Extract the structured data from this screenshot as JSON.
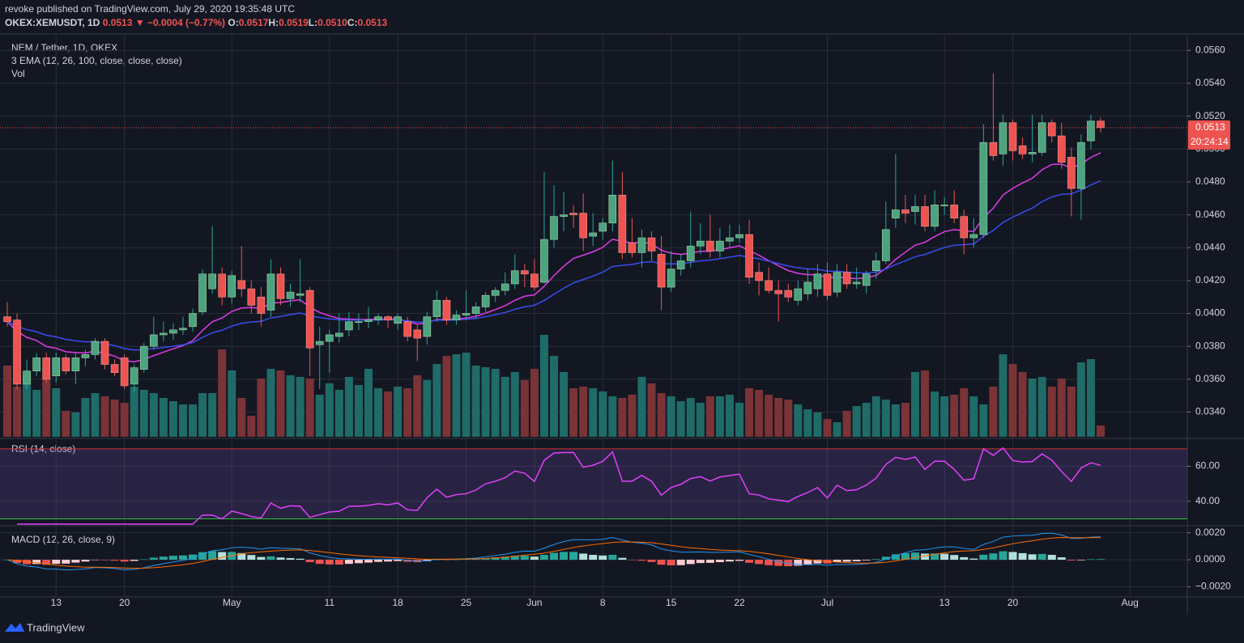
{
  "header": {
    "author_line": "revoke published on TradingView.com, July 29, 2020 19:35:48 UTC",
    "symbol": "OKEX:XEMUSDT, 1D",
    "last": "0.0513",
    "change": "▼ −0.0004 (−0.77%)",
    "ohlc": [
      {
        "label": "O:",
        "value": "0.0517"
      },
      {
        "label": "H:",
        "value": "0.0519"
      },
      {
        "label": "L:",
        "value": "0.0510"
      },
      {
        "label": "C:",
        "value": "0.0513"
      }
    ]
  },
  "legend": {
    "title": "NEM / Tether, 1D, OKEX",
    "ema": "3 EMA (12, 26, 100, close, close, close)",
    "vol": "Vol",
    "rsi": "RSI (14, close)",
    "macd": "MACD (12, 26, close, 9)"
  },
  "price_label": {
    "value": 0.0513,
    "label": "0.0513",
    "countdown": "20:24:14"
  },
  "footer": "TradingView",
  "chart_data": {
    "type": "candlestick",
    "up_color": "#26a69a",
    "down_color": "#ef5350",
    "vol_up_color": "#1f6b67",
    "vol_down_color": "#7a3336",
    "ema_lines": [
      {
        "period": 12,
        "color": "#e03ce6"
      },
      {
        "period": 26,
        "color": "#3b4cf0"
      }
    ],
    "rsi_period": 14,
    "macd_params": [
      12,
      26,
      9
    ],
    "ylim": [
      0.0325,
      0.057
    ],
    "yticks": [
      {
        "value": 0.034,
        "label": "0.0340"
      },
      {
        "value": 0.036,
        "label": "0.0360"
      },
      {
        "value": 0.038,
        "label": "0.0380"
      },
      {
        "value": 0.04,
        "label": "0.0400"
      },
      {
        "value": 0.042,
        "label": "0.0420"
      },
      {
        "value": 0.044,
        "label": "0.0440"
      },
      {
        "value": 0.046,
        "label": "0.0460"
      },
      {
        "value": 0.048,
        "label": "0.0480"
      },
      {
        "value": 0.05,
        "label": "0.0500"
      },
      {
        "value": 0.052,
        "label": "0.0520"
      },
      {
        "value": 0.054,
        "label": "0.0540"
      },
      {
        "value": 0.056,
        "label": "0.0560"
      }
    ],
    "rsi_ylim": [
      27,
      75
    ],
    "rsi_bands": [
      70,
      30
    ],
    "rsi_yticks": [
      {
        "value": 40,
        "label": "40.00"
      },
      {
        "value": 60,
        "label": "60.00"
      }
    ],
    "macd_ylim": [
      -0.00275,
      0.0024
    ],
    "macd_yticks": [
      {
        "value": -0.002,
        "label": "−0.0020"
      },
      {
        "value": 0,
        "label": "0.0000"
      },
      {
        "value": 0.002,
        "label": "0.0020"
      }
    ],
    "xticks": [
      {
        "value": 5,
        "label": "13"
      },
      {
        "value": 12,
        "label": "20"
      },
      {
        "value": 23,
        "label": "May"
      },
      {
        "value": 33,
        "label": "11"
      },
      {
        "value": 40,
        "label": "18"
      },
      {
        "value": 47,
        "label": "25"
      },
      {
        "value": 54,
        "label": "Jun"
      },
      {
        "value": 61,
        "label": "8"
      },
      {
        "value": 68,
        "label": "15"
      },
      {
        "value": 75,
        "label": "22"
      },
      {
        "value": 84,
        "label": "Jul"
      },
      {
        "value": 96,
        "label": "13"
      },
      {
        "value": 103,
        "label": "20"
      },
      {
        "value": 115,
        "label": "Aug"
      }
    ],
    "ohlc": [
      [
        0.0398,
        0.0407,
        0.0392,
        0.0395
      ],
      [
        0.0396,
        0.04,
        0.0354,
        0.0357
      ],
      [
        0.0357,
        0.0372,
        0.0354,
        0.0365
      ],
      [
        0.0365,
        0.0376,
        0.0362,
        0.0373
      ],
      [
        0.0373,
        0.0376,
        0.0358,
        0.036
      ],
      [
        0.0362,
        0.0376,
        0.0358,
        0.0373
      ],
      [
        0.0373,
        0.0375,
        0.0363,
        0.0365
      ],
      [
        0.0365,
        0.0376,
        0.0357,
        0.0373
      ],
      [
        0.0373,
        0.0378,
        0.0368,
        0.0375
      ],
      [
        0.0375,
        0.0385,
        0.0372,
        0.0383
      ],
      [
        0.0383,
        0.0385,
        0.0366,
        0.0369
      ],
      [
        0.0369,
        0.0372,
        0.0362,
        0.0364
      ],
      [
        0.0373,
        0.0375,
        0.0354,
        0.0356
      ],
      [
        0.0357,
        0.0369,
        0.0352,
        0.0367
      ],
      [
        0.0366,
        0.0382,
        0.0364,
        0.038
      ],
      [
        0.038,
        0.0398,
        0.0378,
        0.0387
      ],
      [
        0.0387,
        0.0395,
        0.0383,
        0.0388
      ],
      [
        0.0388,
        0.0394,
        0.0384,
        0.039
      ],
      [
        0.039,
        0.0398,
        0.0387,
        0.0391
      ],
      [
        0.0392,
        0.0403,
        0.0389,
        0.04
      ],
      [
        0.0401,
        0.0427,
        0.0399,
        0.0424
      ],
      [
        0.0415,
        0.0453,
        0.0412,
        0.0424
      ],
      [
        0.0424,
        0.0428,
        0.0405,
        0.041
      ],
      [
        0.041,
        0.0426,
        0.0406,
        0.0423
      ],
      [
        0.042,
        0.0441,
        0.041,
        0.0415
      ],
      [
        0.0415,
        0.042,
        0.04,
        0.0405
      ],
      [
        0.041,
        0.0416,
        0.0392,
        0.04
      ],
      [
        0.0402,
        0.0433,
        0.0398,
        0.0424
      ],
      [
        0.0424,
        0.0428,
        0.0405,
        0.0409
      ],
      [
        0.0409,
        0.0418,
        0.0404,
        0.0413
      ],
      [
        0.0411,
        0.0433,
        0.0407,
        0.0412
      ],
      [
        0.0414,
        0.0416,
        0.0362,
        0.0379
      ],
      [
        0.0381,
        0.0392,
        0.0354,
        0.0383
      ],
      [
        0.0383,
        0.039,
        0.0364,
        0.0387
      ],
      [
        0.0386,
        0.04,
        0.0382,
        0.0388
      ],
      [
        0.039,
        0.0401,
        0.0386,
        0.0395
      ],
      [
        0.0395,
        0.04,
        0.039,
        0.0395
      ],
      [
        0.0395,
        0.0404,
        0.0391,
        0.0396
      ],
      [
        0.0396,
        0.04,
        0.0393,
        0.0398
      ],
      [
        0.0398,
        0.0399,
        0.0391,
        0.0396
      ],
      [
        0.0394,
        0.04,
        0.039,
        0.0398
      ],
      [
        0.0395,
        0.0398,
        0.0383,
        0.0386
      ],
      [
        0.039,
        0.0393,
        0.0371,
        0.0385
      ],
      [
        0.0386,
        0.0401,
        0.0381,
        0.0398
      ],
      [
        0.0398,
        0.0414,
        0.0395,
        0.0408
      ],
      [
        0.0408,
        0.041,
        0.0393,
        0.0396
      ],
      [
        0.0396,
        0.0402,
        0.0393,
        0.0399
      ],
      [
        0.0399,
        0.0414,
        0.0396,
        0.04
      ],
      [
        0.04,
        0.0407,
        0.0397,
        0.0404
      ],
      [
        0.0404,
        0.0413,
        0.0401,
        0.0411
      ],
      [
        0.0411,
        0.0416,
        0.0407,
        0.0414
      ],
      [
        0.0414,
        0.0425,
        0.0411,
        0.0418
      ],
      [
        0.0418,
        0.0436,
        0.0415,
        0.0426
      ],
      [
        0.0426,
        0.043,
        0.0416,
        0.0424
      ],
      [
        0.0424,
        0.0433,
        0.0414,
        0.0416
      ],
      [
        0.0419,
        0.0486,
        0.0418,
        0.0445
      ],
      [
        0.0445,
        0.0478,
        0.044,
        0.0459
      ],
      [
        0.0459,
        0.0474,
        0.045,
        0.046
      ],
      [
        0.0461,
        0.0466,
        0.0452,
        0.046
      ],
      [
        0.0461,
        0.0473,
        0.0438,
        0.0446
      ],
      [
        0.0447,
        0.0461,
        0.0441,
        0.0449
      ],
      [
        0.045,
        0.0458,
        0.0445,
        0.0455
      ],
      [
        0.0455,
        0.0493,
        0.045,
        0.0472
      ],
      [
        0.0472,
        0.0486,
        0.0433,
        0.0437
      ],
      [
        0.0443,
        0.0458,
        0.0434,
        0.0437
      ],
      [
        0.0437,
        0.0451,
        0.0428,
        0.0446
      ],
      [
        0.0446,
        0.045,
        0.0432,
        0.0438
      ],
      [
        0.0436,
        0.0447,
        0.0402,
        0.0416
      ],
      [
        0.0416,
        0.0438,
        0.0413,
        0.0427
      ],
      [
        0.0427,
        0.0436,
        0.0423,
        0.0432
      ],
      [
        0.0432,
        0.0462,
        0.0428,
        0.0441
      ],
      [
        0.0441,
        0.0455,
        0.0436,
        0.0444
      ],
      [
        0.0444,
        0.046,
        0.0434,
        0.0438
      ],
      [
        0.0438,
        0.0452,
        0.0434,
        0.0444
      ],
      [
        0.0444,
        0.0454,
        0.044,
        0.0446
      ],
      [
        0.0446,
        0.0454,
        0.0443,
        0.0448
      ],
      [
        0.0448,
        0.0457,
        0.0418,
        0.0422
      ],
      [
        0.0425,
        0.0431,
        0.0411,
        0.042
      ],
      [
        0.042,
        0.0428,
        0.0412,
        0.0414
      ],
      [
        0.0414,
        0.042,
        0.0395,
        0.0412
      ],
      [
        0.0414,
        0.0418,
        0.0407,
        0.041
      ],
      [
        0.0408,
        0.042,
        0.0405,
        0.0415
      ],
      [
        0.0412,
        0.0427,
        0.0408,
        0.0419
      ],
      [
        0.0415,
        0.043,
        0.041,
        0.0424
      ],
      [
        0.0424,
        0.0431,
        0.0408,
        0.0411
      ],
      [
        0.0413,
        0.043,
        0.041,
        0.0425
      ],
      [
        0.0425,
        0.043,
        0.0415,
        0.0418
      ],
      [
        0.0418,
        0.0428,
        0.0415,
        0.0419
      ],
      [
        0.0417,
        0.0426,
        0.0412,
        0.0424
      ],
      [
        0.0426,
        0.0437,
        0.0421,
        0.0432
      ],
      [
        0.0432,
        0.0468,
        0.043,
        0.0451
      ],
      [
        0.0458,
        0.0497,
        0.0452,
        0.0463
      ],
      [
        0.0463,
        0.0472,
        0.0455,
        0.0461
      ],
      [
        0.0462,
        0.0472,
        0.0454,
        0.0465
      ],
      [
        0.0465,
        0.0472,
        0.045,
        0.0453
      ],
      [
        0.0453,
        0.0475,
        0.045,
        0.0466
      ],
      [
        0.0466,
        0.0471,
        0.046,
        0.0466
      ],
      [
        0.0466,
        0.0475,
        0.0455,
        0.0458
      ],
      [
        0.0459,
        0.0463,
        0.0436,
        0.0446
      ],
      [
        0.0446,
        0.0458,
        0.044,
        0.0448
      ],
      [
        0.0448,
        0.0515,
        0.0446,
        0.0504
      ],
      [
        0.0504,
        0.0546,
        0.0493,
        0.0496
      ],
      [
        0.0497,
        0.0521,
        0.049,
        0.0516
      ],
      [
        0.0516,
        0.0518,
        0.0493,
        0.0499
      ],
      [
        0.0502,
        0.0507,
        0.0494,
        0.0497
      ],
      [
        0.0497,
        0.0521,
        0.0492,
        0.0498
      ],
      [
        0.0498,
        0.0521,
        0.0496,
        0.0516
      ],
      [
        0.0516,
        0.0518,
        0.0504,
        0.0508
      ],
      [
        0.0508,
        0.0516,
        0.0488,
        0.0492
      ],
      [
        0.0495,
        0.0501,
        0.0459,
        0.0476
      ],
      [
        0.0476,
        0.0509,
        0.0457,
        0.0504
      ],
      [
        0.0505,
        0.0521,
        0.05,
        0.0517
      ],
      [
        0.0517,
        0.0519,
        0.051,
        0.0513
      ]
    ],
    "volume": [
      88,
      62,
      78,
      58,
      74,
      60,
      32,
      30,
      48,
      54,
      50,
      46,
      42,
      62,
      58,
      54,
      48,
      44,
      40,
      40,
      54,
      54,
      108,
      82,
      48,
      26,
      72,
      84,
      82,
      76,
      74,
      72,
      52,
      66,
      58,
      74,
      64,
      84,
      60,
      56,
      62,
      60,
      76,
      70,
      90,
      100,
      102,
      104,
      88,
      86,
      84,
      74,
      80,
      70,
      84,
      126,
      100,
      80,
      60,
      62,
      60,
      56,
      50,
      48,
      52,
      74,
      66,
      54,
      50,
      44,
      48,
      42,
      50,
      50,
      52,
      42,
      60,
      58,
      52,
      48,
      46,
      40,
      34,
      30,
      22,
      18,
      32,
      38,
      42,
      50,
      46,
      40,
      42,
      80,
      82,
      56,
      50,
      52,
      60,
      50,
      40,
      62,
      102,
      90,
      80,
      72,
      74,
      62,
      72,
      62,
      92,
      96,
      14
    ]
  }
}
